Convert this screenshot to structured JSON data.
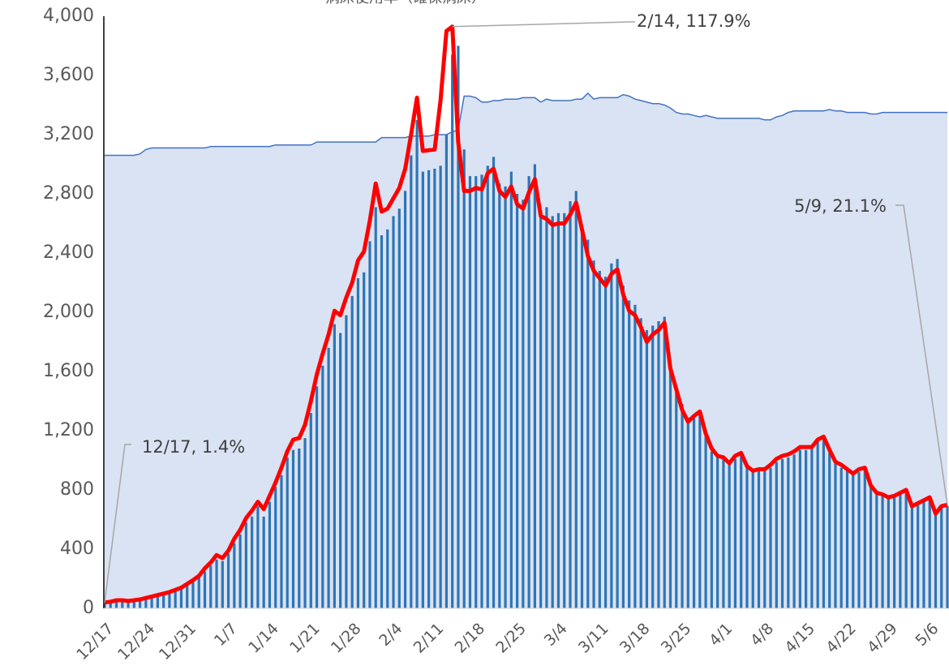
{
  "chart_data": {
    "type": "bar-line-area",
    "title": "病床使用率（確保病床）",
    "categories": [
      "12/17",
      null,
      null,
      null,
      null,
      null,
      null,
      "12/24",
      null,
      null,
      null,
      null,
      null,
      null,
      "12/31",
      null,
      null,
      null,
      null,
      null,
      null,
      "1/7",
      null,
      null,
      null,
      null,
      null,
      null,
      "1/14",
      null,
      null,
      null,
      null,
      null,
      null,
      "1/21",
      null,
      null,
      null,
      null,
      null,
      null,
      "1/28",
      null,
      null,
      null,
      null,
      null,
      null,
      "2/4",
      null,
      null,
      null,
      null,
      null,
      null,
      "2/11",
      null,
      null,
      null,
      null,
      null,
      null,
      "2/18",
      null,
      null,
      null,
      null,
      null,
      null,
      "2/25",
      null,
      null,
      null,
      null,
      null,
      null,
      "3/4",
      null,
      null,
      null,
      null,
      null,
      null,
      "3/11",
      null,
      null,
      null,
      null,
      null,
      null,
      "3/18",
      null,
      null,
      null,
      null,
      null,
      null,
      "3/25",
      null,
      null,
      null,
      null,
      null,
      null,
      "4/1",
      null,
      null,
      null,
      null,
      null,
      null,
      "4/8",
      null,
      null,
      null,
      null,
      null,
      null,
      "4/15",
      null,
      null,
      null,
      null,
      null,
      null,
      "4/22",
      null,
      null,
      null,
      null,
      null,
      null,
      "4/29",
      null,
      null,
      null,
      null,
      null,
      null,
      "5/6",
      null,
      null,
      null
    ],
    "series": [
      {
        "kind": "area",
        "color": "#4472c4",
        "fill": "#dae3f3",
        "values": [
          3060,
          3060,
          3060,
          3060,
          3060,
          3060,
          3070,
          3100,
          3110,
          3110,
          3110,
          3110,
          3110,
          3110,
          3110,
          3110,
          3110,
          3110,
          3120,
          3120,
          3120,
          3120,
          3120,
          3120,
          3120,
          3120,
          3120,
          3120,
          3120,
          3130,
          3130,
          3130,
          3130,
          3130,
          3130,
          3130,
          3150,
          3150,
          3150,
          3150,
          3150,
          3150,
          3150,
          3150,
          3150,
          3150,
          3150,
          3180,
          3180,
          3180,
          3180,
          3180,
          3190,
          3190,
          3190,
          3190,
          3200,
          3200,
          3200,
          3220,
          3230,
          3460,
          3460,
          3450,
          3420,
          3420,
          3430,
          3430,
          3440,
          3440,
          3440,
          3450,
          3450,
          3450,
          3420,
          3440,
          3430,
          3430,
          3430,
          3430,
          3440,
          3440,
          3480,
          3440,
          3450,
          3450,
          3450,
          3450,
          3470,
          3460,
          3440,
          3430,
          3420,
          3410,
          3410,
          3400,
          3380,
          3350,
          3340,
          3340,
          3330,
          3320,
          3330,
          3320,
          3310,
          3310,
          3310,
          3310,
          3310,
          3310,
          3310,
          3310,
          3300,
          3300,
          3320,
          3330,
          3350,
          3360,
          3360,
          3360,
          3360,
          3360,
          3360,
          3370,
          3360,
          3360,
          3350,
          3350,
          3350,
          3350,
          3340,
          3340,
          3350,
          3350,
          3350,
          3350,
          3350,
          3350,
          3350,
          3350,
          3350,
          3350,
          3350,
          3350
        ]
      },
      {
        "kind": "bar",
        "color": "#2e75b6",
        "values": [
          30,
          40,
          45,
          45,
          40,
          45,
          50,
          60,
          70,
          80,
          90,
          100,
          115,
          130,
          155,
          180,
          210,
          250,
          290,
          330,
          320,
          370,
          440,
          500,
          580,
          620,
          690,
          620,
          720,
          820,
          900,
          1020,
          1070,
          1080,
          1150,
          1320,
          1500,
          1640,
          1760,
          1920,
          1860,
          1980,
          2110,
          2230,
          2270,
          2480,
          2710,
          2520,
          2560,
          2650,
          2700,
          2820,
          3060,
          3300,
          2950,
          2960,
          2970,
          2990,
          3200,
          3740,
          3800,
          3100,
          2920,
          2920,
          2930,
          2990,
          3050,
          2870,
          2850,
          2950,
          2800,
          2760,
          2920,
          3000,
          2690,
          2710,
          2650,
          2670,
          2670,
          2750,
          2820,
          2570,
          2490,
          2350,
          2280,
          2240,
          2330,
          2360,
          2180,
          2080,
          2050,
          1960,
          1880,
          1910,
          1940,
          1970,
          1650,
          1500,
          1380,
          1290,
          1300,
          1320,
          1160,
          1060,
          1020,
          1010,
          970,
          1010,
          1030,
          950,
          920,
          930,
          930,
          950,
          990,
          1010,
          1020,
          1040,
          1070,
          1070,
          1080,
          1130,
          1150,
          1050,
          980,
          950,
          930,
          900,
          920,
          940,
          820,
          770,
          760,
          740,
          750,
          770,
          790,
          680,
          700,
          720,
          740,
          630,
          680,
          690
        ]
      },
      {
        "kind": "line",
        "color": "#ff0000",
        "values": [
          40,
          45,
          55,
          55,
          50,
          55,
          60,
          70,
          80,
          90,
          100,
          110,
          125,
          140,
          165,
          190,
          220,
          270,
          310,
          360,
          340,
          390,
          470,
          530,
          610,
          660,
          720,
          670,
          760,
          850,
          950,
          1060,
          1140,
          1150,
          1240,
          1400,
          1580,
          1720,
          1850,
          2010,
          1980,
          2100,
          2200,
          2350,
          2410,
          2620,
          2870,
          2680,
          2700,
          2770,
          2840,
          2970,
          3200,
          3450,
          3090,
          3095,
          3100,
          3430,
          3900,
          3930,
          3150,
          2820,
          2820,
          2840,
          2830,
          2940,
          2970,
          2820,
          2780,
          2850,
          2730,
          2700,
          2810,
          2900,
          2650,
          2630,
          2590,
          2600,
          2600,
          2660,
          2740,
          2560,
          2380,
          2280,
          2230,
          2180,
          2260,
          2290,
          2120,
          2010,
          1980,
          1900,
          1800,
          1850,
          1880,
          1930,
          1620,
          1480,
          1340,
          1260,
          1300,
          1330,
          1180,
          1080,
          1030,
          1020,
          980,
          1030,
          1050,
          960,
          930,
          940,
          940,
          970,
          1010,
          1030,
          1040,
          1060,
          1090,
          1090,
          1090,
          1140,
          1160,
          1070,
          990,
          970,
          940,
          910,
          940,
          950,
          830,
          780,
          770,
          750,
          760,
          780,
          800,
          690,
          710,
          730,
          750,
          640,
          690,
          700
        ]
      }
    ],
    "annotations": [
      "12/17, 1.4%",
      "2/14, 117.9%",
      "5/9, 21.1%"
    ],
    "ylim": [
      0,
      4000
    ],
    "yticks": [
      0,
      400,
      800,
      {
        "value": 1200,
        "label": "1,200"
      },
      {
        "value": 1600,
        "label": "1,600"
      },
      {
        "value": 2000,
        "label": "2,000"
      },
      {
        "value": 2400,
        "label": "2,400"
      },
      {
        "value": 2800,
        "label": "2,800"
      },
      {
        "value": 3200,
        "label": "3,200"
      },
      {
        "value": 3600,
        "label": "3,600"
      },
      {
        "value": 4000,
        "label": "4,000"
      }
    ]
  }
}
